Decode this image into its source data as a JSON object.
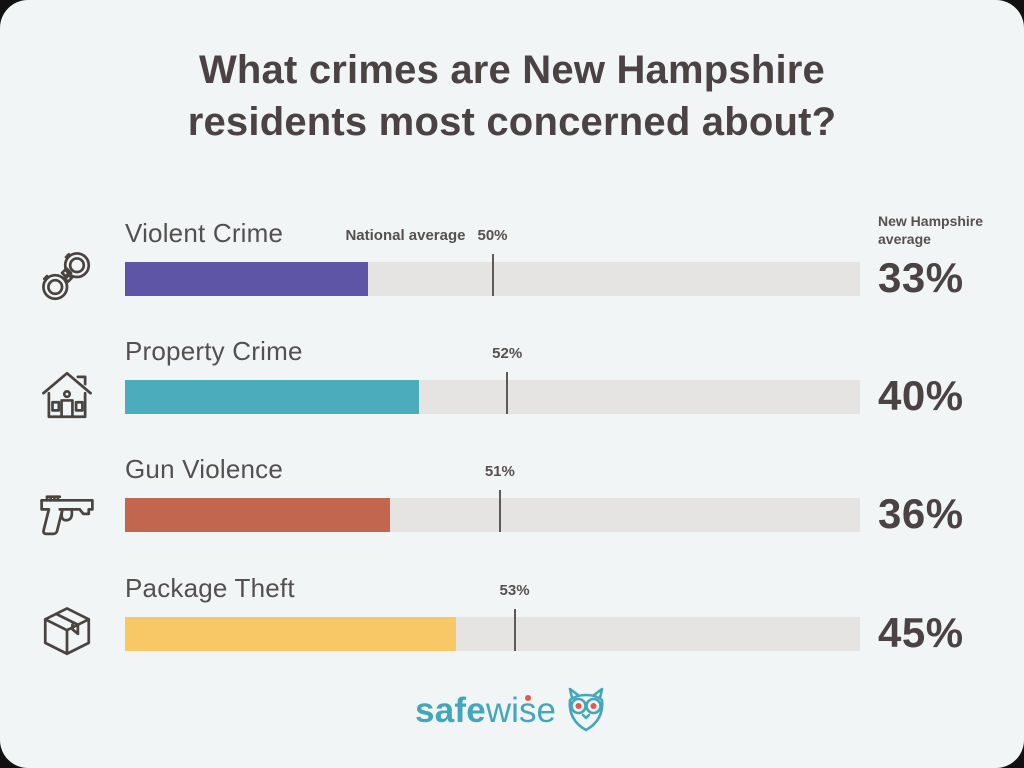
{
  "title_lines": [
    "What crimes are New Hampshire",
    "residents most concerned about?"
  ],
  "right_axis_header": "New Hampshire average",
  "national_average_label": "National average",
  "rows": [
    {
      "label": "Violent Crime",
      "icon": "handcuffs",
      "value_pct": 33,
      "value_label": "33%",
      "national_pct": 50,
      "national_label": "50%",
      "bar_color": "#5f55a7"
    },
    {
      "label": "Property Crime",
      "icon": "house",
      "value_pct": 40,
      "value_label": "40%",
      "national_pct": 52,
      "national_label": "52%",
      "bar_color": "#4badbb"
    },
    {
      "label": "Gun Violence",
      "icon": "handgun",
      "value_pct": 36,
      "value_label": "36%",
      "national_pct": 51,
      "national_label": "51%",
      "bar_color": "#c2664f"
    },
    {
      "label": "Package Theft",
      "icon": "package-box",
      "value_pct": 45,
      "value_label": "45%",
      "national_pct": 53,
      "national_label": "53%",
      "bar_color": "#f8c766"
    }
  ],
  "brand": {
    "bold": "safe",
    "light": "wise"
  },
  "colors": {
    "card_background": "#f1f5f6",
    "track": "#e5e4e2",
    "title_text": "#4a4243",
    "label_text": "#545050",
    "small_text": "#57504e",
    "tick": "#5f5a56",
    "brand_teal": "#43a7b9",
    "brand_accent": "#e2584a"
  },
  "chart_data": {
    "type": "bar",
    "orientation": "horizontal",
    "title": "What crimes are New Hampshire residents most concerned about?",
    "categories": [
      "Violent Crime",
      "Property Crime",
      "Gun Violence",
      "Package Theft"
    ],
    "series": [
      {
        "name": "New Hampshire average",
        "values": [
          33,
          40,
          36,
          45
        ]
      },
      {
        "name": "National average",
        "values": [
          50,
          52,
          51,
          53
        ]
      }
    ],
    "unit": "%",
    "xlim": [
      0,
      100
    ],
    "grid": false,
    "legend_position": "inline-annotations"
  }
}
